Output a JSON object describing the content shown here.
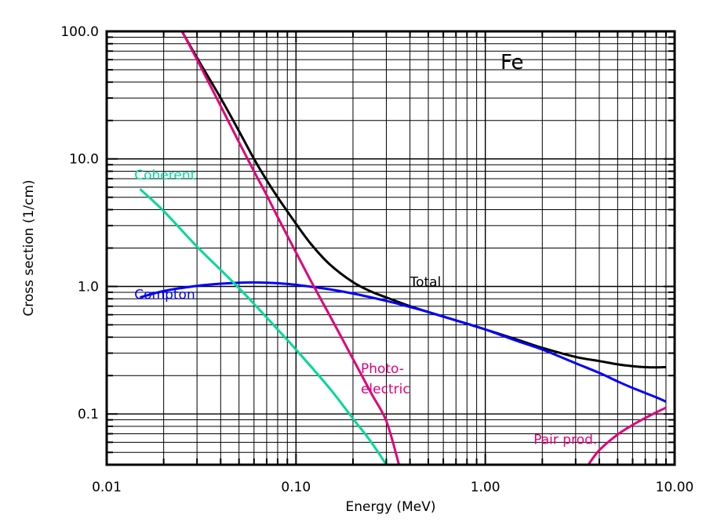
{
  "chart_data": {
    "type": "line",
    "title": "",
    "element_label": "Fe",
    "xlabel": "Energy (MeV)",
    "ylabel": "Cross section (1/cm)",
    "xscale": "log",
    "yscale": "log",
    "xlim": [
      0.01,
      10.0
    ],
    "ylim": [
      0.04,
      100.0
    ],
    "grid": true,
    "x_tick_labels": [
      {
        "value": 0.01,
        "label": "0.01"
      },
      {
        "value": 0.1,
        "label": "0.10"
      },
      {
        "value": 1.0,
        "label": "1.00"
      },
      {
        "value": 10.0,
        "label": "10.00"
      }
    ],
    "y_tick_labels": [
      {
        "value": 0.1,
        "label": "0.1"
      },
      {
        "value": 1.0,
        "label": "1.0"
      },
      {
        "value": 10.0,
        "label": "10.0"
      },
      {
        "value": 100.0,
        "label": "100.0"
      }
    ],
    "series": [
      {
        "name": "Total",
        "color": "#000000",
        "points": [
          [
            0.025,
            100
          ],
          [
            0.03,
            62
          ],
          [
            0.04,
            30
          ],
          [
            0.05,
            16.5
          ],
          [
            0.06,
            10
          ],
          [
            0.07,
            6.8
          ],
          [
            0.08,
            5
          ],
          [
            0.1,
            3.1
          ],
          [
            0.12,
            2.15
          ],
          [
            0.15,
            1.5
          ],
          [
            0.2,
            1.08
          ],
          [
            0.25,
            0.91
          ],
          [
            0.3,
            0.82
          ],
          [
            0.4,
            0.7
          ],
          [
            0.5,
            0.63
          ],
          [
            0.6,
            0.58
          ],
          [
            0.8,
            0.51
          ],
          [
            1.0,
            0.46
          ],
          [
            1.5,
            0.38
          ],
          [
            2.0,
            0.33
          ],
          [
            3.0,
            0.28
          ],
          [
            4.0,
            0.26
          ],
          [
            5.0,
            0.245
          ],
          [
            6.0,
            0.237
          ],
          [
            7.0,
            0.233
          ],
          [
            8.0,
            0.232
          ],
          [
            9.0,
            0.233
          ]
        ]
      },
      {
        "name": "Compton",
        "color": "#0000ff",
        "points": [
          [
            0.015,
            0.82
          ],
          [
            0.02,
            0.92
          ],
          [
            0.03,
            1.01
          ],
          [
            0.04,
            1.05
          ],
          [
            0.05,
            1.07
          ],
          [
            0.06,
            1.075
          ],
          [
            0.08,
            1.06
          ],
          [
            0.1,
            1.03
          ],
          [
            0.15,
            0.95
          ],
          [
            0.2,
            0.88
          ],
          [
            0.3,
            0.77
          ],
          [
            0.4,
            0.69
          ],
          [
            0.5,
            0.63
          ],
          [
            0.6,
            0.58
          ],
          [
            0.8,
            0.51
          ],
          [
            1.0,
            0.46
          ],
          [
            1.5,
            0.37
          ],
          [
            2.0,
            0.32
          ],
          [
            3.0,
            0.25
          ],
          [
            4.0,
            0.21
          ],
          [
            5.0,
            0.18
          ],
          [
            6.0,
            0.16
          ],
          [
            8.0,
            0.135
          ],
          [
            9.0,
            0.125
          ]
        ]
      },
      {
        "name": "Coherent",
        "color": "#00d898",
        "points": [
          [
            0.015,
            5.8
          ],
          [
            0.02,
            3.9
          ],
          [
            0.03,
            2.05
          ],
          [
            0.04,
            1.35
          ],
          [
            0.05,
            0.97
          ],
          [
            0.06,
            0.73
          ],
          [
            0.08,
            0.46
          ],
          [
            0.1,
            0.32
          ],
          [
            0.15,
            0.16
          ],
          [
            0.2,
            0.092
          ],
          [
            0.25,
            0.06
          ],
          [
            0.3,
            0.04
          ]
        ]
      },
      {
        "name": "Photo-electric",
        "color": "#e0007a",
        "points": [
          [
            0.025,
            100
          ],
          [
            0.03,
            60
          ],
          [
            0.04,
            26
          ],
          [
            0.05,
            13.5
          ],
          [
            0.06,
            8
          ],
          [
            0.07,
            5.2
          ],
          [
            0.08,
            3.5
          ],
          [
            0.1,
            1.85
          ],
          [
            0.12,
            1.1
          ],
          [
            0.15,
            0.6
          ],
          [
            0.2,
            0.27
          ],
          [
            0.25,
            0.145
          ],
          [
            0.3,
            0.088
          ],
          [
            0.35,
            0.04
          ]
        ]
      },
      {
        "name": "Pair prod.",
        "color": "#e0007a",
        "points": [
          [
            3.5,
            0.04
          ],
          [
            4.0,
            0.052
          ],
          [
            5.0,
            0.069
          ],
          [
            6.0,
            0.082
          ],
          [
            7.0,
            0.093
          ],
          [
            8.0,
            0.103
          ],
          [
            9.0,
            0.112
          ]
        ]
      }
    ],
    "annotations": [
      {
        "text": "Total",
        "color": "#000000",
        "x": 0.4,
        "y": 1.0
      },
      {
        "text": "Compton",
        "color": "#0000ff",
        "x": 0.014,
        "y": 0.8
      },
      {
        "text": "Coherent",
        "color": "#00d898",
        "x": 0.014,
        "y": 6.9
      },
      {
        "text": "Photo-",
        "color": "#e0007a",
        "x": 0.22,
        "y": 0.21
      },
      {
        "text": "electric",
        "color": "#e0007a",
        "x": 0.22,
        "y": 0.145
      },
      {
        "text": "Pair prod.",
        "color": "#e0007a",
        "x": 1.8,
        "y": 0.058
      }
    ]
  }
}
